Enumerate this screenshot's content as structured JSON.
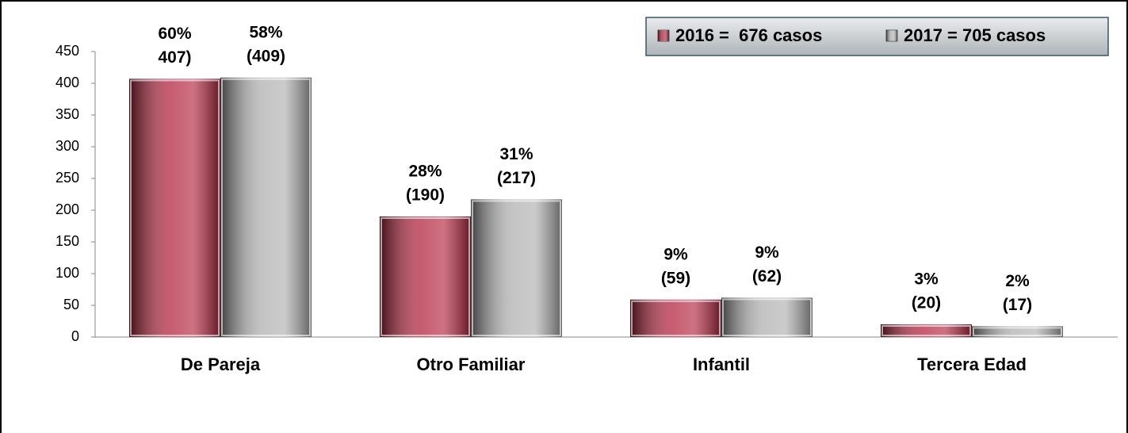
{
  "chart_data": {
    "type": "bar",
    "categories": [
      "De Pareja",
      "Otro Familiar",
      "Infantil",
      "Tercera Edad"
    ],
    "series": [
      {
        "name": "2016 =  676 casos",
        "color": "#b3263f",
        "values": [
          407,
          190,
          59,
          20
        ],
        "value_labels": [
          "407)",
          "(190)",
          "(59)",
          "(20)"
        ],
        "percents": [
          60,
          28,
          9,
          3
        ],
        "percent_labels": [
          "60%",
          "28%",
          "9%",
          "3%"
        ]
      },
      {
        "name": "2017 = 705 casos",
        "color": "#b0b0b0",
        "values": [
          409,
          217,
          62,
          17
        ],
        "value_labels": [
          "(409)",
          "(217)",
          "(62)",
          "(17)"
        ],
        "percents": [
          58,
          31,
          9,
          2
        ],
        "percent_labels": [
          "58%",
          "31%",
          "9%",
          "2%"
        ]
      }
    ],
    "ylim": [
      0,
      450
    ],
    "yticks": [
      0,
      50,
      100,
      150,
      200,
      250,
      300,
      350,
      400,
      450
    ],
    "grid": false,
    "legend": "upper right"
  }
}
